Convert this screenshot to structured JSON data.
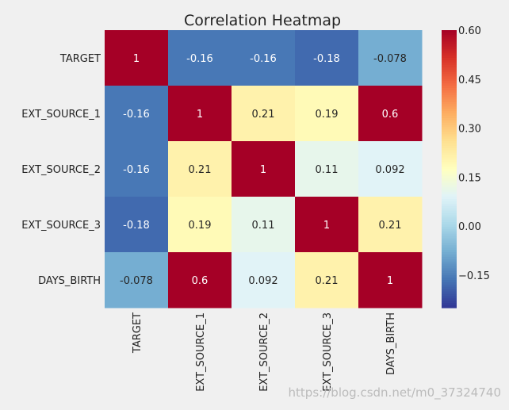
{
  "chart_data": {
    "type": "heatmap",
    "title": "Correlation Heatmap",
    "rows": [
      "TARGET",
      "EXT_SOURCE_1",
      "EXT_SOURCE_2",
      "EXT_SOURCE_3",
      "DAYS_BIRTH"
    ],
    "columns": [
      "TARGET",
      "EXT_SOURCE_1",
      "EXT_SOURCE_2",
      "EXT_SOURCE_3",
      "DAYS_BIRTH"
    ],
    "values": [
      [
        1,
        -0.16,
        -0.16,
        -0.18,
        -0.078
      ],
      [
        -0.16,
        1,
        0.21,
        0.19,
        0.6
      ],
      [
        -0.16,
        0.21,
        1,
        0.11,
        0.092
      ],
      [
        -0.18,
        0.19,
        0.11,
        1,
        0.21
      ],
      [
        -0.078,
        0.6,
        0.092,
        0.21,
        1
      ]
    ],
    "cell_labels": [
      [
        "1",
        "-0.16",
        "-0.16",
        "-0.18",
        "-0.078"
      ],
      [
        "-0.16",
        "1",
        "0.21",
        "0.19",
        "0.6"
      ],
      [
        "-0.16",
        "0.21",
        "1",
        "0.11",
        "0.092"
      ],
      [
        "-0.18",
        "0.19",
        "0.11",
        "1",
        "0.21"
      ],
      [
        "-0.078",
        "0.6",
        "0.092",
        "0.21",
        "1"
      ]
    ],
    "colormap": "RdYlBu_r",
    "vmin": -0.25,
    "vmax": 0.6,
    "colorbar_ticks": [
      0.6,
      0.45,
      0.3,
      0.15,
      0.0,
      -0.15
    ],
    "colorbar_tick_labels": [
      "0.60",
      "0.45",
      "0.30",
      "0.15",
      "0.00",
      "−0.15"
    ],
    "annotated": true,
    "colors": {
      "background": "#f0f0f0",
      "annotation_light": "#ffffff",
      "annotation_dark": "#262626"
    }
  },
  "watermark": "https://blog.csdn.net/m0_37324740"
}
